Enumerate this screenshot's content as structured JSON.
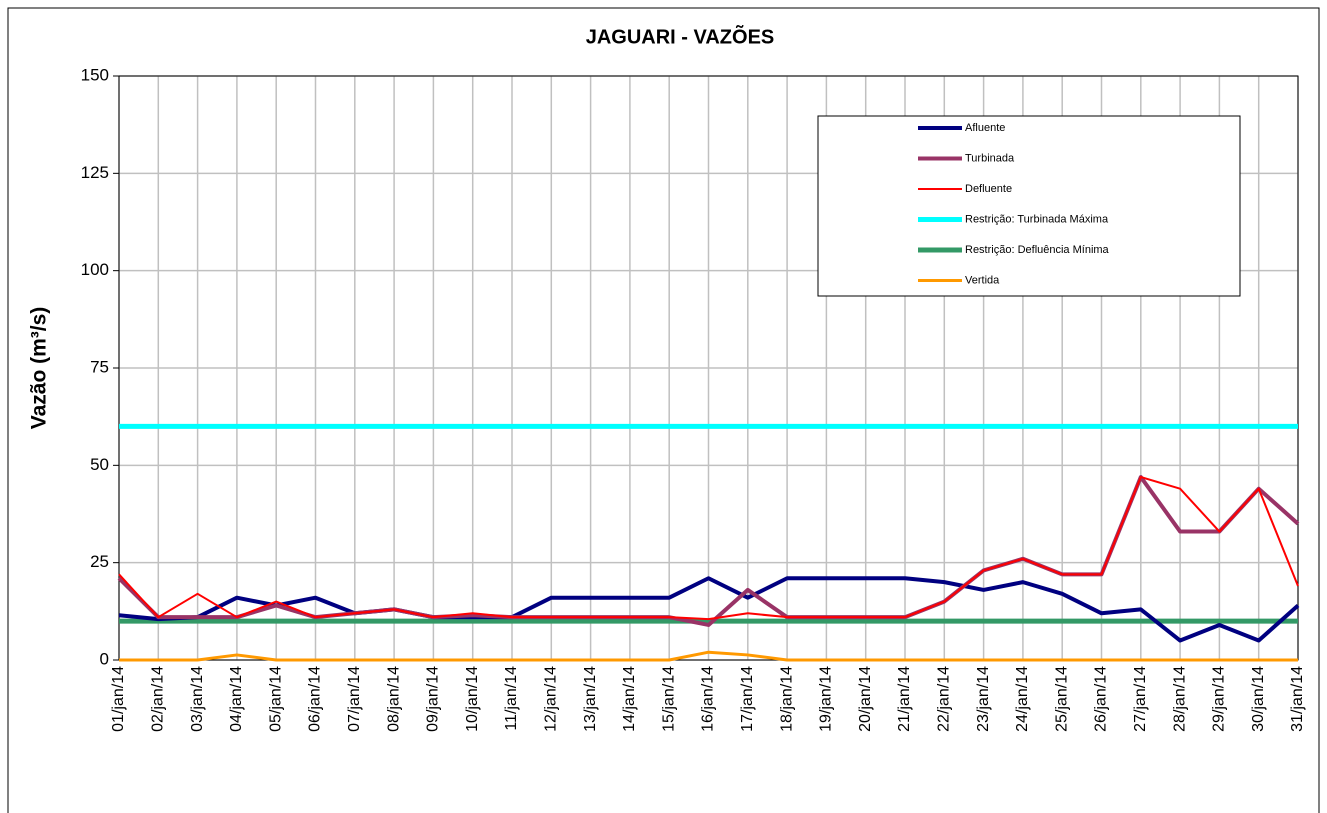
{
  "chart_data": {
    "type": "line",
    "title": "JAGUARI - VAZÕES",
    "y_label": "Vazão (m³/s)",
    "categories": [
      "01/jan/14",
      "02/jan/14",
      "03/jan/14",
      "04/jan/14",
      "05/jan/14",
      "06/jan/14",
      "07/jan/14",
      "08/jan/14",
      "09/jan/14",
      "10/jan/14",
      "11/jan/14",
      "12/jan/14",
      "13/jan/14",
      "14/jan/14",
      "15/jan/14",
      "16/jan/14",
      "17/jan/14",
      "18/jan/14",
      "19/jan/14",
      "20/jan/14",
      "21/jan/14",
      "22/jan/14",
      "23/jan/14",
      "24/jan/14",
      "25/jan/14",
      "26/jan/14",
      "27/jan/14",
      "28/jan/14",
      "29/jan/14",
      "30/jan/14",
      "31/jan/14"
    ],
    "ylim": [
      0,
      150
    ],
    "yticks": [
      0,
      25,
      50,
      75,
      100,
      125,
      150
    ],
    "grid": true,
    "series": [
      {
        "name": "Afluente",
        "color": "#000080",
        "values": [
          11.5,
          10.5,
          11,
          16,
          14,
          16,
          12,
          13,
          11,
          11,
          11,
          16,
          16,
          16,
          16,
          21,
          16,
          21,
          21,
          21,
          21,
          20,
          18,
          20,
          17,
          12,
          13,
          5,
          9,
          5,
          14
        ]
      },
      {
        "name": "Turbinada",
        "color": "#993366",
        "values": [
          21,
          11,
          11,
          11,
          14,
          11,
          12,
          13,
          11,
          11.5,
          11,
          11,
          11,
          11,
          11,
          9,
          18,
          11,
          11,
          11,
          11,
          15,
          23,
          26,
          22,
          22,
          47,
          33,
          33,
          44,
          35
        ]
      },
      {
        "name": "Defluente",
        "color": "#ff0000",
        "values": [
          22,
          11,
          17,
          11,
          15,
          11,
          12,
          13,
          11,
          12,
          11,
          11,
          11,
          11,
          11,
          10.5,
          12,
          11,
          11,
          11,
          11,
          15,
          23,
          26,
          22,
          22,
          47,
          44,
          33,
          44,
          19
        ]
      },
      {
        "name": "Restrição: Turbinada Máxima",
        "color": "#00ffff",
        "values": [
          60,
          60,
          60,
          60,
          60,
          60,
          60,
          60,
          60,
          60,
          60,
          60,
          60,
          60,
          60,
          60,
          60,
          60,
          60,
          60,
          60,
          60,
          60,
          60,
          60,
          60,
          60,
          60,
          60,
          60,
          60
        ]
      },
      {
        "name": "Restrição: Defluência Mínima",
        "color": "#339966",
        "values": [
          10,
          10,
          10,
          10,
          10,
          10,
          10,
          10,
          10,
          10,
          10,
          10,
          10,
          10,
          10,
          10,
          10,
          10,
          10,
          10,
          10,
          10,
          10,
          10,
          10,
          10,
          10,
          10,
          10,
          10,
          10
        ]
      },
      {
        "name": "Vertida",
        "color": "#ff9900",
        "values": [
          0,
          0,
          0,
          1.3,
          0,
          0,
          0,
          0,
          0,
          0,
          0,
          0,
          0,
          0,
          0,
          2,
          1.3,
          0,
          0,
          0,
          0,
          0,
          0,
          0,
          0,
          0,
          0,
          0,
          0,
          0,
          0
        ]
      }
    ]
  }
}
